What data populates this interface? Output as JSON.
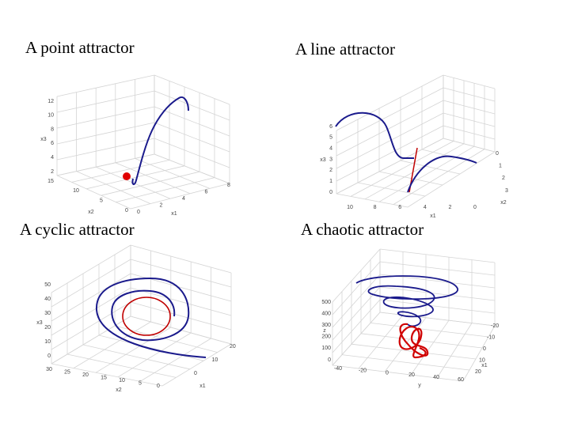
{
  "panels": [
    {
      "title": "A point attractor",
      "z_axis": {
        "label": "x3",
        "ticks": [
          "12",
          "10",
          "8",
          "6",
          "4",
          "2"
        ]
      },
      "y_axis": {
        "label": "x2",
        "ticks": [
          "15",
          "10",
          "5",
          "0"
        ]
      },
      "x_axis": {
        "label": "x1",
        "ticks": [
          "0",
          "2",
          "4",
          "6",
          "8"
        ]
      }
    },
    {
      "title": "A line attractor",
      "z_axis": {
        "label": "x3",
        "ticks": [
          "6",
          "5",
          "4",
          "3",
          "2",
          "1",
          "0"
        ]
      },
      "y_axis": {
        "label": "x1",
        "ticks": [
          "10",
          "8",
          "6",
          "4",
          "2",
          "0"
        ]
      },
      "x_axis": {
        "label": "x2",
        "ticks": [
          "0",
          "1",
          "2",
          "3"
        ]
      }
    },
    {
      "title": "A cyclic attractor",
      "z_axis": {
        "label": "x3",
        "ticks": [
          "50",
          "40",
          "30",
          "20",
          "10",
          "0"
        ]
      },
      "y_axis": {
        "label": "x2",
        "ticks": [
          "30",
          "25",
          "20",
          "15",
          "10",
          "5",
          "0"
        ]
      },
      "x_axis": {
        "label": "x1",
        "ticks": [
          "0",
          "10",
          "20"
        ]
      }
    },
    {
      "title": "A chaotic attractor",
      "z_axis": {
        "label": "z",
        "ticks": [
          "500",
          "400",
          "300",
          "200",
          "100",
          "0"
        ]
      },
      "y_axis": {
        "label": "y",
        "ticks": [
          "-40",
          "-20",
          "0",
          "20",
          "40",
          "60"
        ]
      },
      "x_axis": {
        "label": "x1",
        "ticks": [
          "20",
          "10",
          "0",
          "-10",
          "-20"
        ]
      }
    }
  ]
}
